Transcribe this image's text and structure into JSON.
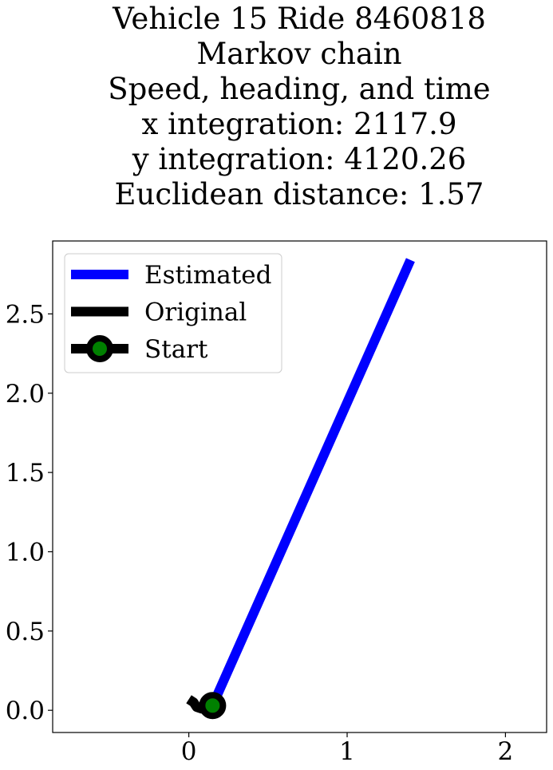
{
  "chart_data": {
    "type": "line",
    "title_lines": [
      "Vehicle 15 Ride 8460818",
      "Markov chain",
      "Speed, heading, and time",
      "x integration: 2117.9",
      "y integration: 4120.26",
      "Euclidean distance: 1.57"
    ],
    "xlabel": "",
    "ylabel": "",
    "xlim": [
      -0.86,
      2.26
    ],
    "ylim": [
      -0.14,
      2.96
    ],
    "xticks": [
      0,
      1,
      2
    ],
    "yticks": [
      0.0,
      0.5,
      1.0,
      1.5,
      2.0,
      2.5
    ],
    "xtick_labels": [
      "0",
      "1",
      "2"
    ],
    "ytick_labels": [
      "0.0",
      "0.5",
      "1.0",
      "1.5",
      "2.0",
      "2.5"
    ],
    "grid": false,
    "legend_position": "top-left",
    "series": [
      {
        "name": "Estimated",
        "color": "#0000ff",
        "x": [
          0.15,
          1.4
        ],
        "y": [
          0.03,
          2.84
        ]
      },
      {
        "name": "Original",
        "color": "#000000",
        "x": [
          0.0,
          0.03,
          0.05,
          0.08,
          0.11,
          0.15
        ],
        "y": [
          0.07,
          0.05,
          0.02,
          0.01,
          0.02,
          0.03
        ]
      }
    ],
    "start": {
      "name": "Start",
      "x": 0.15,
      "y": 0.03,
      "marker_edge_color": "#000000",
      "marker_face_color": "#008000"
    }
  }
}
